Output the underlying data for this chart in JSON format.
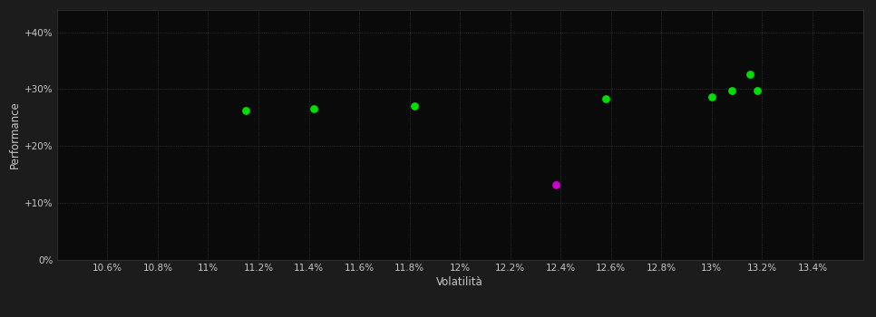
{
  "background_color": "#1c1c1c",
  "plot_bg_color": "#0a0a0a",
  "grid_color": "#3a3a3a",
  "text_color": "#c8c8c8",
  "xlabel": "Volatilità",
  "ylabel": "Performance",
  "xlim": [
    0.104,
    0.136
  ],
  "ylim": [
    0.0,
    0.44
  ],
  "xticks": [
    0.106,
    0.108,
    0.11,
    0.112,
    0.114,
    0.116,
    0.118,
    0.12,
    0.122,
    0.124,
    0.126,
    0.128,
    0.13,
    0.132,
    0.134
  ],
  "yticks": [
    0.0,
    0.1,
    0.2,
    0.3,
    0.4
  ],
  "ytick_labels": [
    "0%",
    "+10%",
    "+20%",
    "+30%",
    "+40%"
  ],
  "xtick_labels": [
    "10.6%",
    "10.8%",
    "11%",
    "11.2%",
    "11.4%",
    "11.6%",
    "11.8%",
    "12%",
    "12.2%",
    "12.4%",
    "12.6%",
    "12.8%",
    "13%",
    "13.2%",
    "13.4%"
  ],
  "green_points": [
    [
      0.1115,
      0.263
    ],
    [
      0.1142,
      0.266
    ],
    [
      0.1182,
      0.27
    ],
    [
      0.1258,
      0.283
    ],
    [
      0.13,
      0.287
    ],
    [
      0.1308,
      0.297
    ],
    [
      0.1318,
      0.297
    ],
    [
      0.1315,
      0.327
    ]
  ],
  "magenta_points": [
    [
      0.1238,
      0.132
    ]
  ],
  "green_color": "#00dd00",
  "magenta_color": "#cc00cc",
  "marker_size": 40
}
